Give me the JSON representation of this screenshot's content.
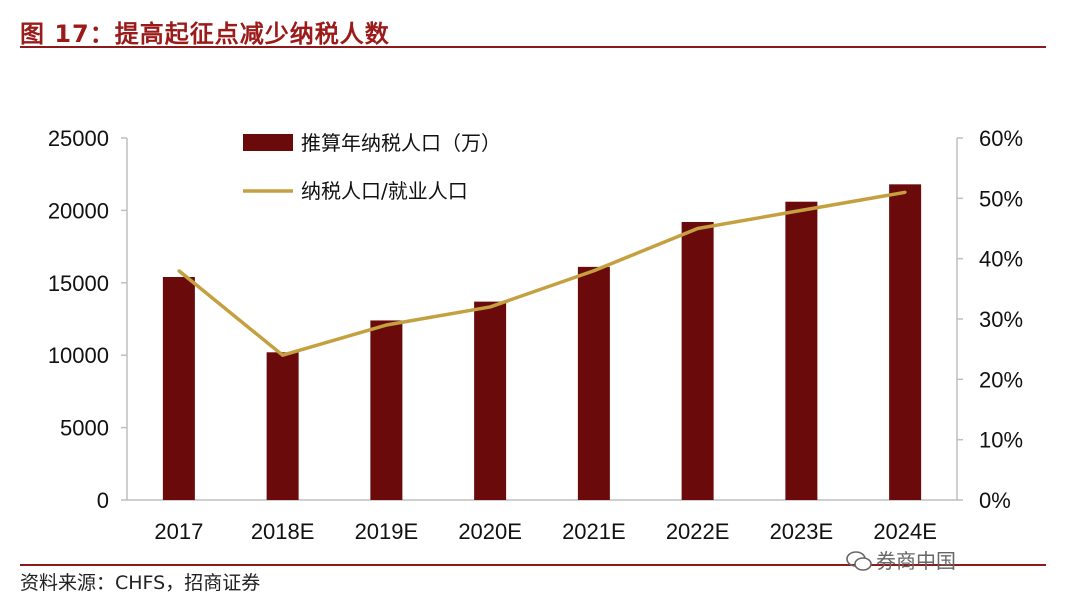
{
  "figure": {
    "title": "图 17：提高起征点减少纳税人数",
    "source": "资料来源：CHFS，招商证券",
    "watermark": "券商中国"
  },
  "chart_data": {
    "type": "bar",
    "categories": [
      "2017",
      "2018E",
      "2019E",
      "2020E",
      "2021E",
      "2022E",
      "2023E",
      "2024E"
    ],
    "series": [
      {
        "name": "推算年纳税人口（万）",
        "type": "bar",
        "axis": "left",
        "color": "#6B0A0A",
        "values": [
          15400,
          10200,
          12400,
          13700,
          16100,
          19200,
          20600,
          21800
        ]
      },
      {
        "name": "纳税人口/就业人口",
        "type": "line",
        "axis": "right",
        "color": "#C4A040",
        "values": [
          0.38,
          0.24,
          0.29,
          0.32,
          0.38,
          0.45,
          0.48,
          0.51
        ]
      }
    ],
    "left_axis": {
      "ylim": [
        0,
        25000
      ],
      "ticks": [
        "0",
        "5000",
        "10000",
        "15000",
        "20000",
        "25000"
      ]
    },
    "right_axis": {
      "ylim": [
        0,
        0.6
      ],
      "ticks": [
        "0%",
        "10%",
        "20%",
        "30%",
        "40%",
        "50%",
        "60%"
      ]
    },
    "grid": false,
    "legend_position": "top-center"
  }
}
